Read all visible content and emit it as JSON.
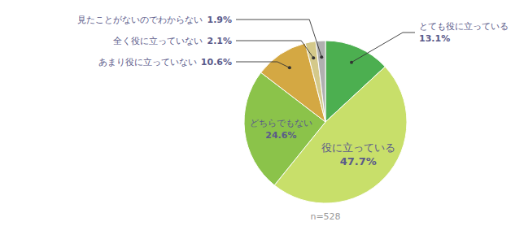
{
  "chart_data": {
    "type": "pie",
    "categories": [
      "とても役に立っている",
      "役に立っている",
      "どちらでもない",
      "あまり役に立っていない",
      "全く役に立っていない",
      "見たことがないのでわからない"
    ],
    "values": [
      13.1,
      47.7,
      24.6,
      10.6,
      2.1,
      1.9
    ],
    "value_labels": [
      "13.1%",
      "47.7%",
      "24.6%",
      "10.6%",
      "2.1%",
      "1.9%"
    ],
    "colors": [
      "#4caf50",
      "#c8df6a",
      "#8bc34a",
      "#d4a843",
      "#d4c98a",
      "#b0b0b0"
    ],
    "data_labels": true,
    "annotations": [
      "n=528"
    ]
  }
}
